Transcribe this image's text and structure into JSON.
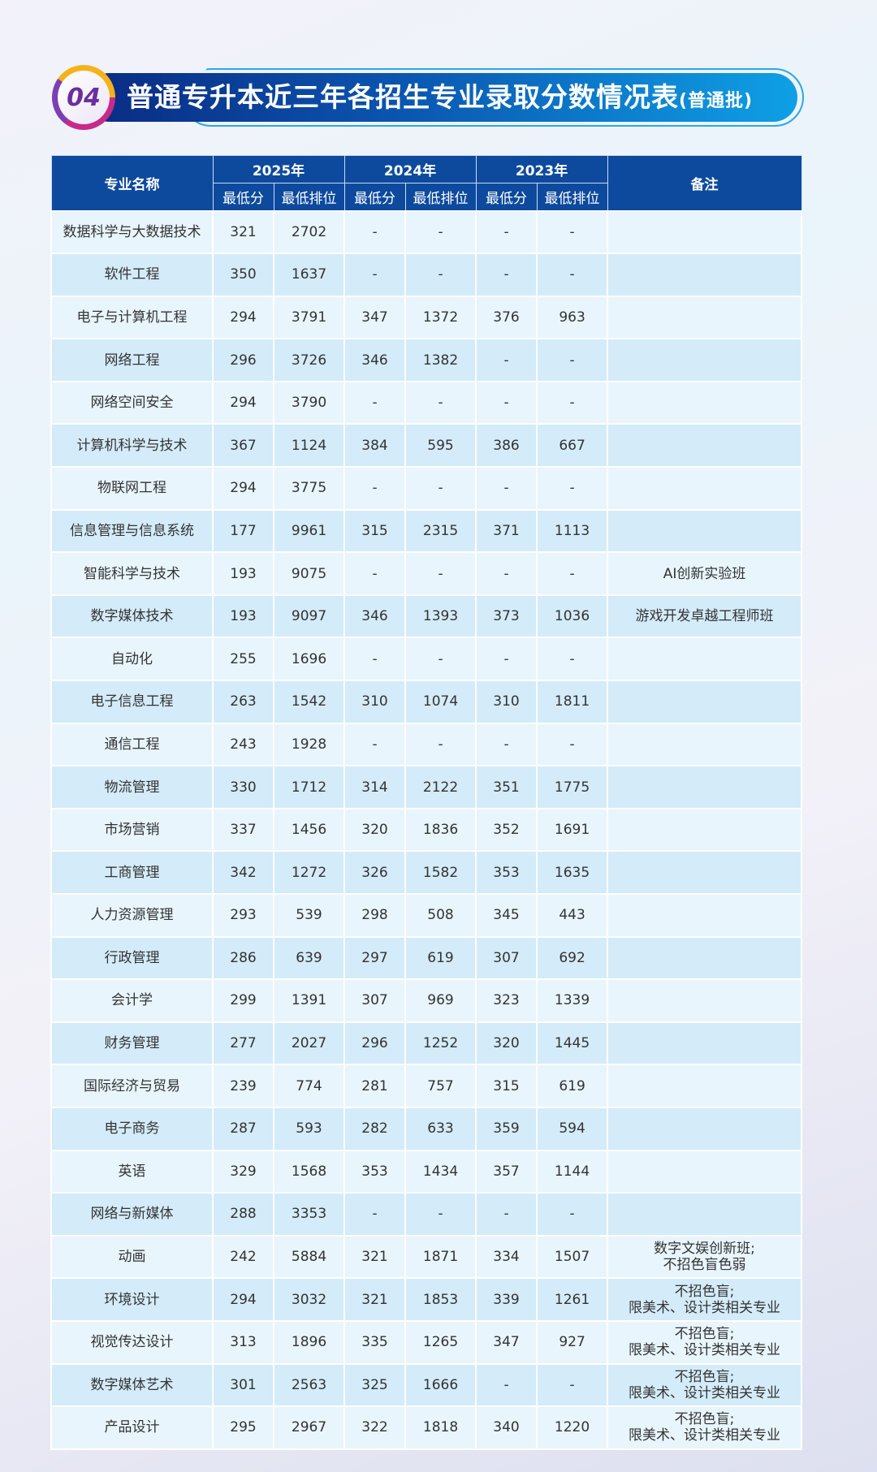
{
  "badge": "04",
  "title": "普通专升本近三年各招生专业录取分数情况表",
  "title_suffix": "(普通批)",
  "header": {
    "major": "专业名称",
    "years": [
      "2025年",
      "2024年",
      "2023年"
    ],
    "min_score": "最低分",
    "min_rank": "最低排位",
    "note": "备注"
  },
  "rows": [
    [
      "数据科学与大数据技术",
      "321",
      "2702",
      "-",
      "-",
      "-",
      "-",
      ""
    ],
    [
      "软件工程",
      "350",
      "1637",
      "-",
      "-",
      "-",
      "-",
      ""
    ],
    [
      "电子与计算机工程",
      "294",
      "3791",
      "347",
      "1372",
      "376",
      "963",
      ""
    ],
    [
      "网络工程",
      "296",
      "3726",
      "346",
      "1382",
      "-",
      "-",
      ""
    ],
    [
      "网络空间安全",
      "294",
      "3790",
      "-",
      "-",
      "-",
      "-",
      ""
    ],
    [
      "计算机科学与技术",
      "367",
      "1124",
      "384",
      "595",
      "386",
      "667",
      ""
    ],
    [
      "物联网工程",
      "294",
      "3775",
      "-",
      "-",
      "-",
      "-",
      ""
    ],
    [
      "信息管理与信息系统",
      "177",
      "9961",
      "315",
      "2315",
      "371",
      "1113",
      ""
    ],
    [
      "智能科学与技术",
      "193",
      "9075",
      "-",
      "-",
      "-",
      "-",
      "AI创新实验班"
    ],
    [
      "数字媒体技术",
      "193",
      "9097",
      "346",
      "1393",
      "373",
      "1036",
      "游戏开发卓越工程师班"
    ],
    [
      "自动化",
      "255",
      "1696",
      "-",
      "-",
      "-",
      "-",
      ""
    ],
    [
      "电子信息工程",
      "263",
      "1542",
      "310",
      "1074",
      "310",
      "1811",
      ""
    ],
    [
      "通信工程",
      "243",
      "1928",
      "-",
      "-",
      "-",
      "-",
      ""
    ],
    [
      "物流管理",
      "330",
      "1712",
      "314",
      "2122",
      "351",
      "1775",
      ""
    ],
    [
      "市场营销",
      "337",
      "1456",
      "320",
      "1836",
      "352",
      "1691",
      ""
    ],
    [
      "工商管理",
      "342",
      "1272",
      "326",
      "1582",
      "353",
      "1635",
      ""
    ],
    [
      "人力资源管理",
      "293",
      "539",
      "298",
      "508",
      "345",
      "443",
      ""
    ],
    [
      "行政管理",
      "286",
      "639",
      "297",
      "619",
      "307",
      "692",
      ""
    ],
    [
      "会计学",
      "299",
      "1391",
      "307",
      "969",
      "323",
      "1339",
      ""
    ],
    [
      "财务管理",
      "277",
      "2027",
      "296",
      "1252",
      "320",
      "1445",
      ""
    ],
    [
      "国际经济与贸易",
      "239",
      "774",
      "281",
      "757",
      "315",
      "619",
      ""
    ],
    [
      "电子商务",
      "287",
      "593",
      "282",
      "633",
      "359",
      "594",
      ""
    ],
    [
      "英语",
      "329",
      "1568",
      "353",
      "1434",
      "357",
      "1144",
      ""
    ],
    [
      "网络与新媒体",
      "288",
      "3353",
      "-",
      "-",
      "-",
      "-",
      ""
    ],
    [
      "动画",
      "242",
      "5884",
      "321",
      "1871",
      "334",
      "1507",
      "数字文娱创新班;\n不招色盲色弱"
    ],
    [
      "环境设计",
      "294",
      "3032",
      "321",
      "1853",
      "339",
      "1261",
      "不招色盲;\n限美术、设计类相关专业"
    ],
    [
      "视觉传达设计",
      "313",
      "1896",
      "335",
      "1265",
      "347",
      "927",
      "不招色盲;\n限美术、设计类相关专业"
    ],
    [
      "数字媒体艺术",
      "301",
      "2563",
      "325",
      "1666",
      "-",
      "-",
      "不招色盲;\n限美术、设计类相关专业"
    ],
    [
      "产品设计",
      "295",
      "2967",
      "322",
      "1818",
      "340",
      "1220",
      "不招色盲;\n限美术、设计类相关专业"
    ]
  ]
}
